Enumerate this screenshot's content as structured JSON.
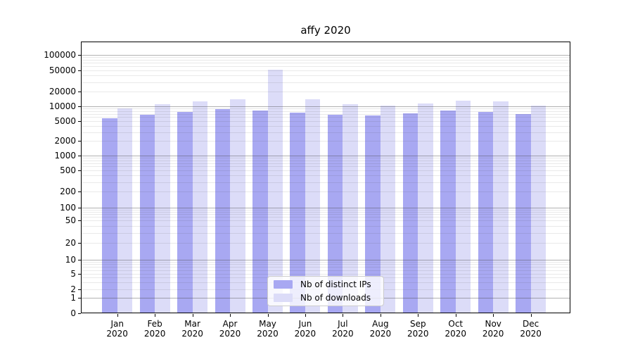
{
  "title": "affy 2020",
  "chart_data": {
    "type": "bar",
    "title": "affy 2020",
    "categories": [
      "Jan",
      "Feb",
      "Mar",
      "Apr",
      "May",
      "Jun",
      "Jul",
      "Aug",
      "Sep",
      "Oct",
      "Nov",
      "Dec"
    ],
    "year_label": "2020",
    "series": [
      {
        "name": "Nb of distinct IPs",
        "color": "#a8a8f2",
        "values": [
          5800,
          6800,
          7800,
          8700,
          8200,
          7400,
          6800,
          6600,
          7300,
          8200,
          7700,
          6900
        ]
      },
      {
        "name": "Nb of downloads",
        "color": "#dcdcf8",
        "values": [
          9100,
          11000,
          12600,
          13800,
          52000,
          14100,
          11000,
          10200,
          11400,
          13200,
          12500,
          10200
        ]
      }
    ],
    "xlabel": "",
    "ylabel": "",
    "y_ticks": [
      0,
      1,
      2,
      5,
      10,
      20,
      50,
      100,
      200,
      500,
      1000,
      2000,
      5000,
      10000,
      20000,
      50000,
      100000
    ],
    "ylim": [
      0,
      190000
    ],
    "y_scale": "symlog (logarithmic above 1, linear 0-1)",
    "grid": "horizontal major and minor log gridlines, drawn over bars",
    "legend_position": "lower center inside plot"
  },
  "legend": {
    "items": [
      {
        "label": "Nb of distinct IPs",
        "color": "#a8a8f2"
      },
      {
        "label": "Nb of downloads",
        "color": "#dcdcf8"
      }
    ]
  }
}
